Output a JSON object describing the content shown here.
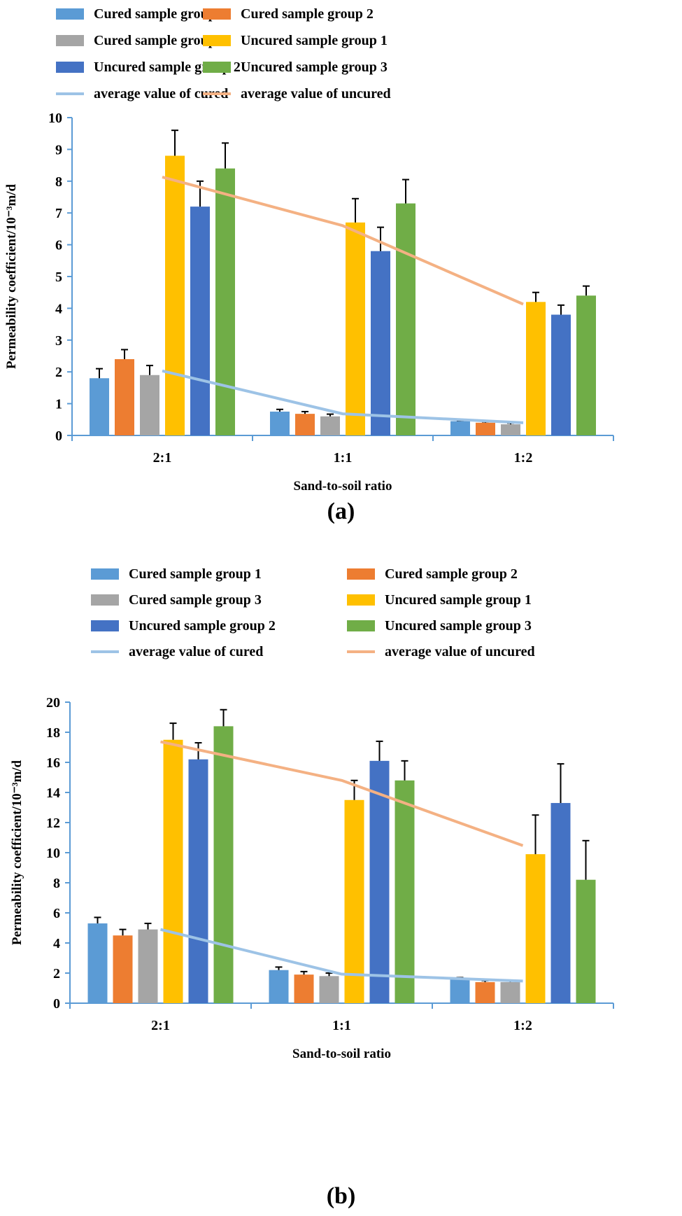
{
  "legend": [
    {
      "label": "Cured sample group 1",
      "color": "#5B9BD5",
      "kind": "bar"
    },
    {
      "label": "Cured sample group 2",
      "color": "#ED7D31",
      "kind": "bar"
    },
    {
      "label": "Cured sample group 3",
      "color": "#A5A5A5",
      "kind": "bar"
    },
    {
      "label": "Uncured sample group 1",
      "color": "#FFC000",
      "kind": "bar"
    },
    {
      "label": "Uncured sample group 2",
      "color": "#4472C4",
      "kind": "bar"
    },
    {
      "label": "Uncured sample group 3",
      "color": "#70AD47",
      "kind": "bar"
    },
    {
      "label": "average value of cured",
      "color": "#9DC3E6",
      "kind": "line"
    },
    {
      "label": "average value of uncured",
      "color": "#F4B183",
      "kind": "line"
    }
  ],
  "chart_data": [
    {
      "type": "bar",
      "panel": "(a)",
      "title": "",
      "xlabel": "Sand-to-soil ratio",
      "ylabel": "Permeability coefficient/10⁻³m/d",
      "categories": [
        "2:1",
        "1:1",
        "1:2"
      ],
      "ylim": [
        0,
        10
      ],
      "yticks": [
        0,
        1,
        2,
        3,
        4,
        5,
        6,
        7,
        8,
        9,
        10
      ],
      "grid": false,
      "legend_position": "top",
      "series": [
        {
          "name": "Cured sample group 1",
          "values": [
            1.8,
            0.75,
            0.45
          ],
          "error_upper": [
            2.1,
            0.82,
            0.47
          ]
        },
        {
          "name": "Cured sample group 2",
          "values": [
            2.4,
            0.68,
            0.4
          ],
          "error_upper": [
            2.7,
            0.75,
            0.43
          ]
        },
        {
          "name": "Cured sample group 3",
          "values": [
            1.9,
            0.6,
            0.35
          ],
          "error_upper": [
            2.2,
            0.67,
            0.39
          ]
        },
        {
          "name": "Uncured sample group 1",
          "values": [
            8.8,
            6.7,
            4.2
          ],
          "error_upper": [
            9.6,
            7.45,
            4.5
          ]
        },
        {
          "name": "Uncured sample group 2",
          "values": [
            7.2,
            5.8,
            3.8
          ],
          "error_upper": [
            8.0,
            6.55,
            4.1
          ]
        },
        {
          "name": "Uncured sample group 3",
          "values": [
            8.4,
            7.3,
            4.4
          ],
          "error_upper": [
            9.2,
            8.05,
            4.7
          ]
        }
      ],
      "lines": [
        {
          "name": "average value of cured",
          "values": [
            2.03,
            0.68,
            0.4
          ]
        },
        {
          "name": "average value of uncured",
          "values": [
            8.13,
            6.6,
            4.13
          ]
        }
      ]
    },
    {
      "type": "bar",
      "panel": "(b)",
      "title": "",
      "xlabel": "Sand-to-soil ratio",
      "ylabel": "Permeability coefficient/10⁻³m/d",
      "categories": [
        "2:1",
        "1:1",
        "1:2"
      ],
      "ylim": [
        0,
        20
      ],
      "yticks": [
        0,
        2,
        4,
        6,
        8,
        10,
        12,
        14,
        16,
        18,
        20
      ],
      "grid": false,
      "legend_position": "top",
      "series": [
        {
          "name": "Cured sample group 1",
          "values": [
            5.3,
            2.2,
            1.6
          ],
          "error_upper": [
            5.7,
            2.4,
            1.7
          ]
        },
        {
          "name": "Cured sample group 2",
          "values": [
            4.5,
            1.9,
            1.4
          ],
          "error_upper": [
            4.9,
            2.1,
            1.5
          ]
        },
        {
          "name": "Cured sample group 3",
          "values": [
            4.9,
            1.8,
            1.4
          ],
          "error_upper": [
            5.3,
            2.0,
            1.5
          ]
        },
        {
          "name": "Uncured sample group 1",
          "values": [
            17.5,
            13.5,
            9.9
          ],
          "error_upper": [
            18.6,
            14.8,
            12.5
          ]
        },
        {
          "name": "Uncured sample group 2",
          "values": [
            16.2,
            16.1,
            13.3
          ],
          "error_upper": [
            17.3,
            17.4,
            15.9
          ]
        },
        {
          "name": "Uncured sample group 3",
          "values": [
            18.4,
            14.8,
            8.2
          ],
          "error_upper": [
            19.5,
            16.1,
            10.8
          ]
        }
      ],
      "lines": [
        {
          "name": "average value of cured",
          "values": [
            4.9,
            1.93,
            1.47
          ]
        },
        {
          "name": "average value of uncured",
          "values": [
            17.37,
            14.8,
            10.47
          ]
        }
      ]
    }
  ]
}
